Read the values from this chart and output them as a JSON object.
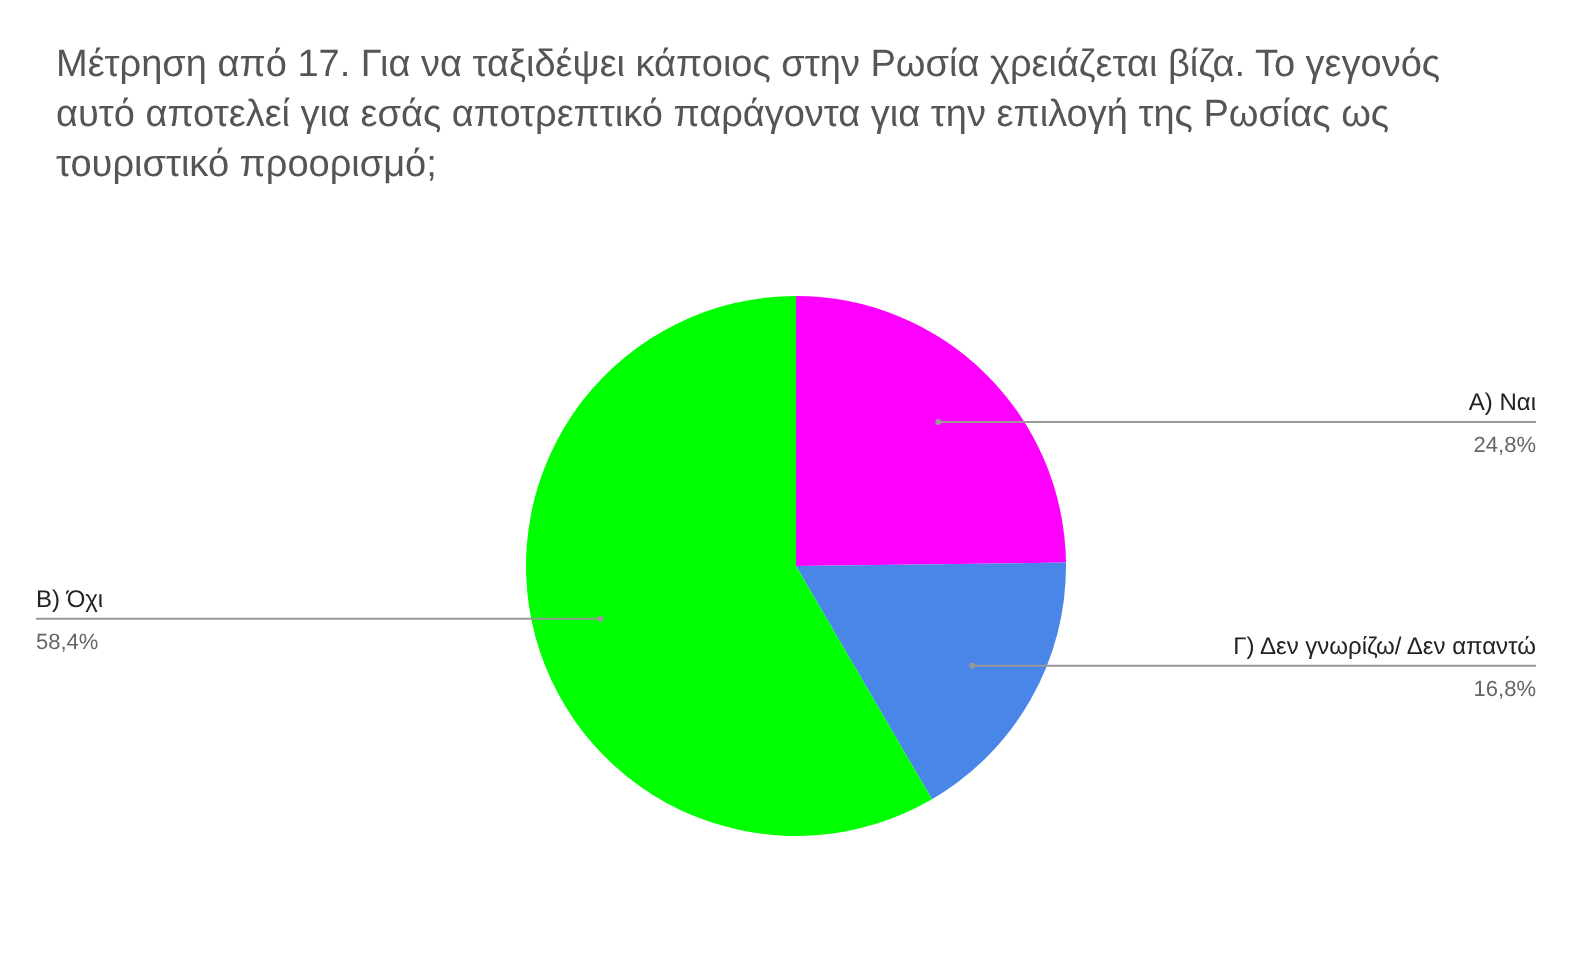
{
  "chart_data": {
    "type": "pie",
    "title": "Μέτρηση από 17. Για να ταξιδέψει κάποιος στην Ρωσία χρειάζεται βίζα. Το γεγονός αυτό αποτελεί για εσάς αποτρεπτικό παράγοντα για την επιλογή της Ρωσίας ως τουριστικό προορισμό;",
    "categories": [
      "Α) Ναι",
      "Γ) Δεν γνωρίζω/ Δεν απαντώ",
      "Β) Όχι"
    ],
    "values": [
      24.8,
      16.8,
      58.4
    ],
    "value_labels": [
      "24,8%",
      "16,8%",
      "58,4%"
    ],
    "colors": [
      "#ff00ff",
      "#4a86e8",
      "#00ff00"
    ]
  }
}
